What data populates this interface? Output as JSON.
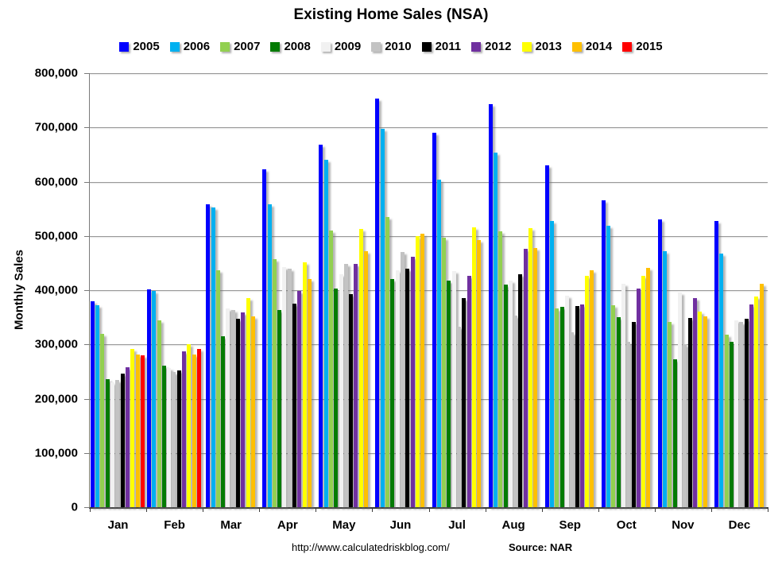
{
  "title": "Existing Home Sales (NSA)",
  "y_axis": {
    "label": "Monthly Sales",
    "min": 0,
    "max": 800000,
    "step": 100000
  },
  "footer": {
    "url": "http://www.calculatedriskblog.com/",
    "source": "Source: NAR"
  },
  "chart_data": {
    "type": "bar",
    "title": "Existing Home Sales (NSA)",
    "ylabel": "Monthly Sales",
    "ylim": [
      0,
      800000
    ],
    "ytick_step": 100000,
    "grid": true,
    "legend_position": "top",
    "categories": [
      "Jan",
      "Feb",
      "Mar",
      "Apr",
      "May",
      "Jun",
      "Jul",
      "Aug",
      "Sep",
      "Oct",
      "Nov",
      "Dec"
    ],
    "series": [
      {
        "name": "2005",
        "color": "#0000FF",
        "values": [
          380000,
          401000,
          558000,
          623000,
          668000,
          753000,
          690000,
          743000,
          630000,
          565000,
          530000,
          527000
        ]
      },
      {
        "name": "2006",
        "color": "#00B0F0",
        "values": [
          372000,
          398000,
          553000,
          558000,
          641000,
          698000,
          603000,
          653000,
          528000,
          518000,
          472000,
          468000
        ]
      },
      {
        "name": "2007",
        "color": "#92D050",
        "values": [
          320000,
          345000,
          437000,
          457000,
          510000,
          535000,
          497000,
          508000,
          367000,
          372000,
          342000,
          318000
        ]
      },
      {
        "name": "2008",
        "color": "#037B03",
        "values": [
          236000,
          261000,
          315000,
          363000,
          403000,
          420000,
          418000,
          410000,
          369000,
          350000,
          272000,
          305000
        ]
      },
      {
        "name": "2009",
        "color": "#F1F1F1",
        "values": [
          230000,
          256000,
          366000,
          443000,
          430000,
          437000,
          435000,
          418000,
          390000,
          412000,
          395000,
          345000
        ]
      },
      {
        "name": "2010",
        "color": "#C3C3C3",
        "values": [
          235000,
          249000,
          363000,
          440000,
          448000,
          470000,
          333000,
          353000,
          322000,
          305000,
          301000,
          342000
        ]
      },
      {
        "name": "2011",
        "color": "#000000",
        "values": [
          246000,
          252000,
          347000,
          375000,
          392000,
          440000,
          385000,
          429000,
          370000,
          342000,
          349000,
          348000
        ]
      },
      {
        "name": "2012",
        "color": "#7030A0",
        "values": [
          258000,
          287000,
          359000,
          398000,
          448000,
          462000,
          426000,
          476000,
          373000,
          403000,
          385000,
          374000
        ]
      },
      {
        "name": "2013",
        "color": "#FFFF00",
        "values": [
          291000,
          301000,
          385000,
          452000,
          513000,
          500000,
          516000,
          515000,
          427000,
          426000,
          360000,
          388000
        ]
      },
      {
        "name": "2014",
        "color": "#FFC000",
        "values": [
          282000,
          281000,
          352000,
          421000,
          472000,
          504000,
          493000,
          478000,
          436000,
          441000,
          352000,
          412000
        ]
      },
      {
        "name": "2015",
        "color": "#FF0000",
        "values": [
          280000,
          292000,
          null,
          null,
          null,
          null,
          null,
          null,
          null,
          null,
          null,
          null
        ]
      }
    ]
  }
}
